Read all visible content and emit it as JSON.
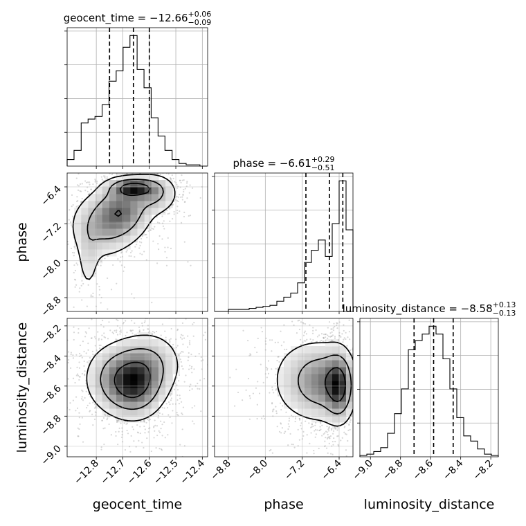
{
  "chart_data": {
    "type": "corner",
    "parameters": [
      {
        "name": "geocent_time",
        "label": "geocent_time",
        "title_main": "geocent_time = −12.66",
        "title_plus": "+0.06",
        "title_minus": "−0.09",
        "median": -12.66,
        "err_plus": 0.06,
        "err_minus": 0.09,
        "quantiles": [
          -12.75,
          -12.66,
          -12.6
        ],
        "range": [
          -12.91,
          -12.38
        ],
        "ticks": [
          -12.8,
          -12.7,
          -12.6,
          -12.5,
          -12.4
        ],
        "tick_labels": [
          "−12.8",
          "−12.7",
          "−12.6",
          "−12.5",
          "−12.4"
        ],
        "hist": {
          "edges": [
            -12.91,
            -12.884,
            -12.857,
            -12.831,
            -12.805,
            -12.778,
            -12.752,
            -12.725,
            -12.699,
            -12.673,
            -12.646,
            -12.62,
            -12.593,
            -12.567,
            -12.541,
            -12.514,
            -12.488,
            -12.461,
            -12.435,
            -12.409,
            -12.382
          ],
          "counts": [
            0.05,
            0.12,
            0.33,
            0.36,
            0.38,
            0.47,
            0.65,
            0.73,
            0.91,
            1.0,
            0.74,
            0.6,
            0.37,
            0.23,
            0.12,
            0.05,
            0.02,
            0.01,
            0.01,
            0.0
          ]
        }
      },
      {
        "name": "phase",
        "label": "phase",
        "title_main": "phase = −6.61",
        "title_plus": "+0.29",
        "title_minus": "−0.51",
        "median": -6.61,
        "err_plus": 0.29,
        "err_minus": 0.51,
        "quantiles": [
          -7.12,
          -6.61,
          -6.32
        ],
        "range": [
          -9.1,
          -6.1
        ],
        "ticks": [
          -8.8,
          -8.0,
          -7.2,
          -6.4
        ],
        "tick_labels": [
          "−8.8",
          "−8.0",
          "−7.2",
          "−6.4"
        ],
        "hist": {
          "edges": [
            -9.1,
            -8.95,
            -8.8,
            -8.65,
            -8.5,
            -8.35,
            -8.2,
            -8.05,
            -7.9,
            -7.75,
            -7.6,
            -7.45,
            -7.3,
            -7.15,
            -7.0,
            -6.85,
            -6.7,
            -6.55,
            -6.4,
            -6.25,
            -6.1
          ],
          "counts": [
            0.0,
            0.0,
            0.01,
            0.01,
            0.01,
            0.015,
            0.02,
            0.025,
            0.03,
            0.05,
            0.07,
            0.09,
            0.14,
            0.24,
            0.3,
            0.35,
            0.27,
            0.43,
            0.64,
            0.4
          ]
        }
      },
      {
        "name": "luminosity_distance",
        "label": "luminosity_distance",
        "title_main": "luminosity_distance = −8.58",
        "title_plus": "+0.13",
        "title_minus": "−0.13",
        "median": -8.58,
        "err_plus": 0.13,
        "err_minus": 0.13,
        "quantiles": [
          -8.71,
          -8.58,
          -8.45
        ],
        "range": [
          -9.07,
          -8.15
        ],
        "ticks": [
          -9.0,
          -8.8,
          -8.6,
          -8.4,
          -8.2
        ],
        "tick_labels": [
          "−9.0",
          "−8.8",
          "−8.6",
          "−8.4",
          "−8.2"
        ],
        "hist": {
          "edges": [
            -9.07,
            -9.024,
            -8.978,
            -8.932,
            -8.886,
            -8.84,
            -8.794,
            -8.748,
            -8.702,
            -8.656,
            -8.61,
            -8.564,
            -8.518,
            -8.472,
            -8.426,
            -8.38,
            -8.334,
            -8.288,
            -8.242,
            -8.196,
            -8.15
          ],
          "counts": [
            0.01,
            0.02,
            0.04,
            0.07,
            0.18,
            0.33,
            0.52,
            0.82,
            0.89,
            0.94,
            1.0,
            0.94,
            0.75,
            0.52,
            0.3,
            0.16,
            0.12,
            0.06,
            0.02,
            0.01
          ]
        }
      }
    ],
    "pairs": [
      {
        "x": "geocent_time",
        "y": "phase",
        "blobs": [
          {
            "cx": -12.66,
            "cy": -6.42,
            "sx": 0.05,
            "sy": 0.12,
            "weight": 0.33
          },
          {
            "cx": -12.7,
            "cy": -6.9,
            "sx": 0.06,
            "sy": 0.35,
            "weight": 0.25
          },
          {
            "cx": -12.78,
            "cy": -7.25,
            "sx": 0.07,
            "sy": 0.4,
            "weight": 0.17
          },
          {
            "cx": -12.83,
            "cy": -8.0,
            "sx": 0.025,
            "sy": 0.45,
            "weight": 0.08
          },
          {
            "cx": -12.58,
            "cy": -6.55,
            "sx": 0.05,
            "sy": 0.25,
            "weight": 0.17
          }
        ],
        "contour_levels": [
          0.12,
          0.35,
          0.7
        ]
      },
      {
        "x": "geocent_time",
        "y": "luminosity_distance",
        "blobs": [
          {
            "cx": -12.65,
            "cy": -8.6,
            "sx": 0.06,
            "sy": 0.12,
            "weight": 0.42
          },
          {
            "cx": -12.72,
            "cy": -8.55,
            "sx": 0.07,
            "sy": 0.13,
            "weight": 0.33
          },
          {
            "cx": -12.6,
            "cy": -8.45,
            "sx": 0.07,
            "sy": 0.12,
            "weight": 0.25
          }
        ],
        "contour_levels": [
          0.12,
          0.35,
          0.7
        ]
      },
      {
        "x": "phase",
        "y": "luminosity_distance",
        "blobs": [
          {
            "cx": -6.4,
            "cy": -8.6,
            "sx": 0.18,
            "sy": 0.13,
            "weight": 0.5
          },
          {
            "cx": -6.75,
            "cy": -8.57,
            "sx": 0.35,
            "sy": 0.14,
            "weight": 0.35
          },
          {
            "cx": -7.3,
            "cy": -8.56,
            "sx": 0.4,
            "sy": 0.16,
            "weight": 0.15
          }
        ],
        "contour_levels": [
          0.12,
          0.35,
          0.7
        ]
      }
    ],
    "grid": true,
    "colors": {
      "ink": "#000000",
      "grid": "#b0b0b0",
      "points": "#8c8c8c"
    }
  }
}
